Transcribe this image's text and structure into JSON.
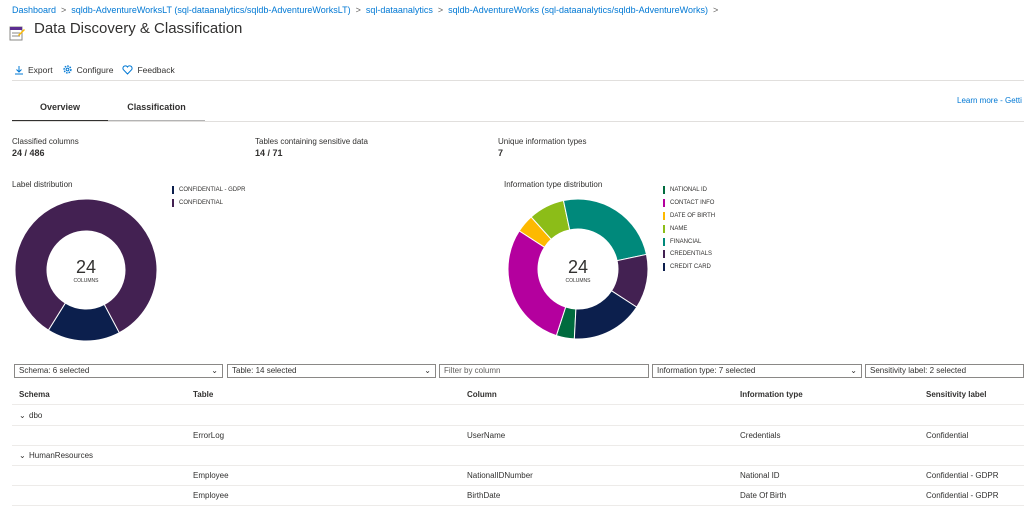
{
  "breadcrumb": [
    "Dashboard",
    "sqldb-AdventureWorksLT (sql-dataanalytics/sqldb-AdventureWorksLT)",
    "sql-dataanalytics",
    "sqldb-AdventureWorks (sql-dataanalytics/sqldb-AdventureWorks)"
  ],
  "page": {
    "title": "Data Discovery & Classification"
  },
  "toolbar": {
    "export": "Export",
    "configure": "Configure",
    "feedback": "Feedback"
  },
  "tabs": {
    "overview": "Overview",
    "classification": "Classification"
  },
  "learn_more": "Learn more - Getti",
  "stats": [
    {
      "label": "Classified columns",
      "value": "24 / 486"
    },
    {
      "label": "Tables containing sensitive data",
      "value": "14 / 71"
    },
    {
      "label": "Unique information types",
      "value": "7"
    }
  ],
  "label_distribution": {
    "title": "Label distribution",
    "center_value": "24",
    "center_sub": "COLUMNS",
    "legend": [
      {
        "name": "CONFIDENTIAL - GDPR",
        "color": "#0c1f4d",
        "value": 4
      },
      {
        "name": "CONFIDENTIAL",
        "color": "#432152",
        "value": 20
      }
    ]
  },
  "info_distribution": {
    "title": "Information type distribution",
    "center_value": "24",
    "center_sub": "COLUMNS",
    "legend": [
      {
        "name": "NATIONAL ID",
        "color": "#006b3e",
        "value": 1
      },
      {
        "name": "CONTACT INFO",
        "color": "#b4009e",
        "value": 7
      },
      {
        "name": "DATE OF BIRTH",
        "color": "#fdb900",
        "value": 1
      },
      {
        "name": "NAME",
        "color": "#8cbd18",
        "value": 2
      },
      {
        "name": "FINANCIAL",
        "color": "#00897b",
        "value": 6
      },
      {
        "name": "CREDENTIALS",
        "color": "#432152",
        "value": 3
      },
      {
        "name": "CREDIT CARD",
        "color": "#0c1f4d",
        "value": 4
      }
    ]
  },
  "filters": {
    "schema": "Schema: 6 selected",
    "table": "Table: 14 selected",
    "column_placeholder": "Filter by column",
    "info_type": "Information type: 7 selected",
    "sensitivity": "Sensitivity label: 2 selected"
  },
  "table": {
    "headers": [
      "Schema",
      "Table",
      "Column",
      "Information type",
      "Sensitivity label"
    ],
    "groups": [
      {
        "name": "dbo",
        "rows": [
          [
            "ErrorLog",
            "UserName",
            "Credentials",
            "Confidential"
          ]
        ]
      },
      {
        "name": "HumanResources",
        "rows": [
          [
            "Employee",
            "NationalIDNumber",
            "National ID",
            "Confidential - GDPR"
          ],
          [
            "Employee",
            "BirthDate",
            "Date Of Birth",
            "Confidential - GDPR"
          ]
        ]
      }
    ]
  }
}
